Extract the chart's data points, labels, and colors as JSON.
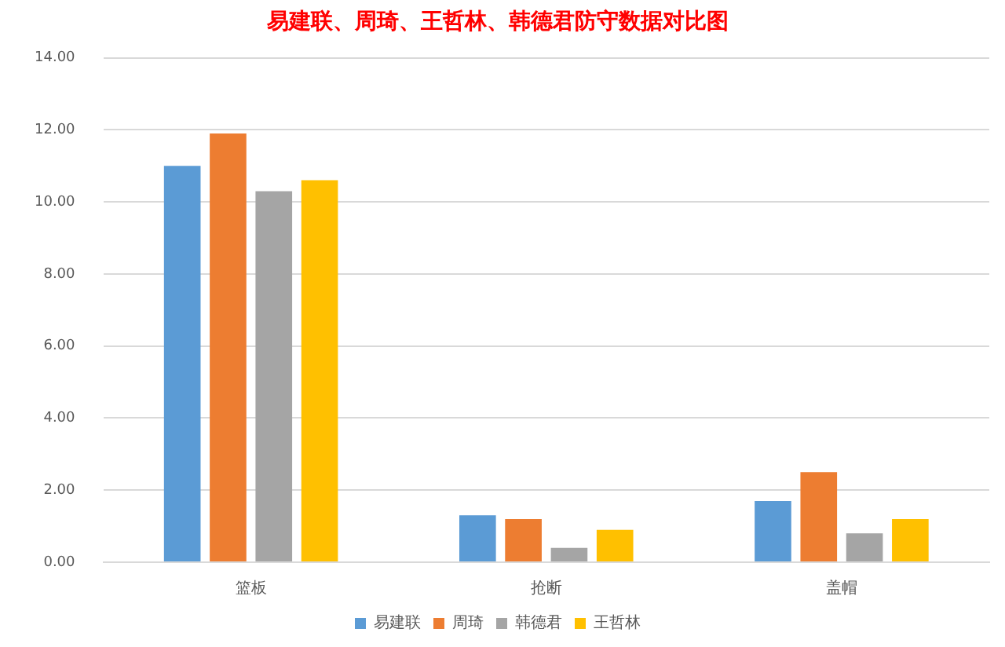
{
  "chart_data": {
    "type": "bar",
    "title": "易建联、周琦、王哲林、韩德君防守数据对比图",
    "categories": [
      "篮板",
      "抢断",
      "盖帽"
    ],
    "series": [
      {
        "name": "易建联",
        "color": "#5b9bd5",
        "values": [
          11.0,
          1.3,
          1.7
        ]
      },
      {
        "name": "周琦",
        "color": "#ed7d31",
        "values": [
          11.9,
          1.2,
          2.5
        ]
      },
      {
        "name": "韩德君",
        "color": "#a5a5a5",
        "values": [
          10.3,
          0.4,
          0.8
        ]
      },
      {
        "name": "王哲林",
        "color": "#ffc000",
        "values": [
          10.6,
          0.9,
          1.2
        ]
      }
    ],
    "ylim": [
      0,
      14
    ],
    "yticks": [
      {
        "value": 0,
        "label": "0.00"
      },
      {
        "value": 2,
        "label": "2.00"
      },
      {
        "value": 4,
        "label": "4.00"
      },
      {
        "value": 6,
        "label": "6.00"
      },
      {
        "value": 8,
        "label": "8.00"
      },
      {
        "value": 10,
        "label": "10.00"
      },
      {
        "value": 12,
        "label": "12.00"
      },
      {
        "value": 14,
        "label": "14.00"
      }
    ],
    "grid": "y",
    "legend": "bottom"
  }
}
